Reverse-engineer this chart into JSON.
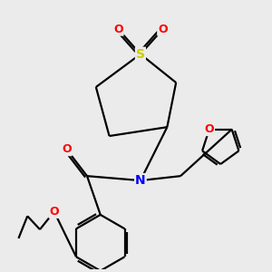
{
  "bg_color": "#ebebeb",
  "atom_colors": {
    "C": "#000000",
    "N": "#0000ff",
    "O": "#ff0000",
    "S": "#cccc00"
  },
  "line_color": "#000000",
  "line_width": 1.6,
  "figsize": [
    3.0,
    3.0
  ],
  "dpi": 100
}
